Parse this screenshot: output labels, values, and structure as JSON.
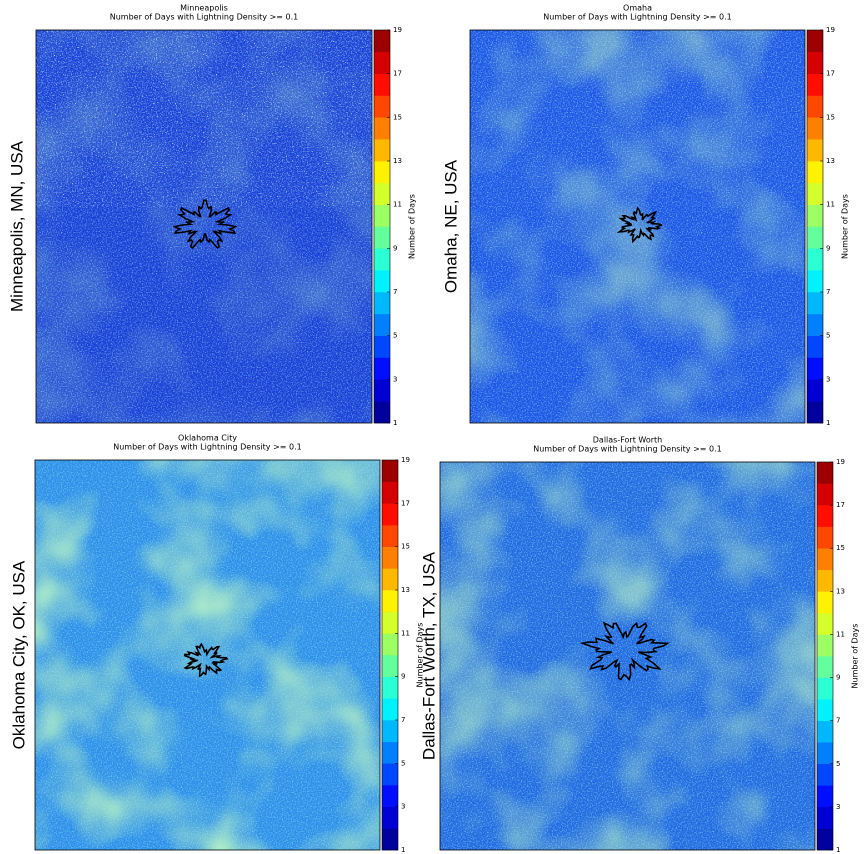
{
  "chart_data": [
    {
      "type": "heatmap",
      "title": "Minneapolis",
      "subtitle": "Number of Days with Lightning Density >= 0.1",
      "ylabel": "Minneapolis, MN, USA",
      "colorbar_label": "Number of Days",
      "colormap": "jet",
      "clim": [
        1,
        19
      ],
      "cticks": [
        1,
        3,
        5,
        7,
        9,
        11,
        13,
        15,
        17,
        19
      ]
    },
    {
      "type": "heatmap",
      "title": "Omaha",
      "subtitle": "Number of Days with Lightning Density >= 0.1",
      "ylabel": "Omaha, NE, USA",
      "colorbar_label": "Number of Days",
      "colormap": "jet",
      "clim": [
        1,
        19
      ],
      "cticks": [
        1,
        3,
        5,
        7,
        9,
        11,
        13,
        15,
        17,
        19
      ]
    },
    {
      "type": "heatmap",
      "title": "Oklahoma City",
      "subtitle": "Number of Days with Lightning Density >= 0.1",
      "ylabel": "Oklahoma City, OK, USA",
      "colorbar_label": "Number of Days",
      "colormap": "jet",
      "clim": [
        1,
        19
      ],
      "cticks": [
        1,
        3,
        5,
        7,
        9,
        11,
        13,
        15,
        17,
        19
      ]
    },
    {
      "type": "heatmap",
      "title": "Dallas-Fort Worth",
      "subtitle": "Number of Days with Lightning Density >= 0.1",
      "ylabel": "Dallas-Fort Worth, TX, USA",
      "colorbar_label": "Number of Days",
      "colormap": "jet",
      "clim": [
        1,
        19
      ],
      "cticks": [
        1,
        3,
        5,
        7,
        9,
        11,
        13,
        15,
        17,
        19
      ]
    }
  ]
}
